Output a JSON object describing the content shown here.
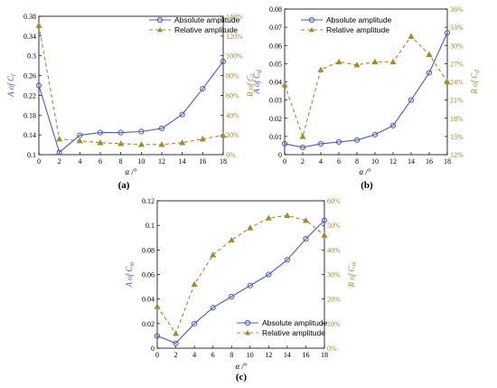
{
  "colors": {
    "absolute": "#4a5bc4",
    "relative": "#a68a2a",
    "axis": "#000000"
  },
  "chart_data": [
    {
      "type": "line",
      "panel_label": "(a)",
      "x": [
        0,
        2,
        4,
        6,
        8,
        10,
        12,
        14,
        16,
        18
      ],
      "xlabel": "α /°",
      "ylabel_left": "A of C_l",
      "ylabel_right": "R of C_l",
      "xlim": [
        0,
        18
      ],
      "ylim_left": [
        0.1,
        0.4
      ],
      "ylim_right": [
        0,
        150
      ],
      "xticks": [
        "0",
        "2",
        "4",
        "6",
        "8",
        "10",
        "12",
        "14",
        "16",
        "18"
      ],
      "yticks_left": [
        "0.1",
        "0.14",
        "0.18",
        "0.22",
        "0.26",
        "0.3",
        "0.34",
        "0.38"
      ],
      "yticks_right": [
        "0%",
        "20%",
        "40%",
        "60%",
        "80%",
        "100%",
        "120%",
        "140%"
      ],
      "legend_position": "top-right",
      "series": [
        {
          "name": "Absolute amplitude",
          "axis": "left",
          "values": [
            0.25,
            0.105,
            0.142,
            0.148,
            0.148,
            0.15,
            0.157,
            0.187,
            0.243,
            0.302
          ]
        },
        {
          "name": "Relative amplitude",
          "axis": "right",
          "values": [
            140,
            17,
            15,
            13,
            12,
            11,
            11,
            13,
            17,
            21
          ]
        }
      ]
    },
    {
      "type": "line",
      "panel_label": "(b)",
      "x": [
        0,
        2,
        4,
        6,
        8,
        10,
        12,
        14,
        16,
        18
      ],
      "xlabel": "α /°",
      "ylabel_left": "A of C_d",
      "ylabel_right": "R of C_d",
      "xlim": [
        0,
        18
      ],
      "ylim_left": [
        0,
        0.08
      ],
      "ylim_right": [
        12,
        36
      ],
      "xticks": [
        "0",
        "2",
        "4",
        "6",
        "8",
        "10",
        "12",
        "14",
        "16",
        "18"
      ],
      "yticks_left": [
        "0",
        "0.01",
        "0.02",
        "0.03",
        "0.04",
        "0.05",
        "0.06",
        "0.07",
        "0.08"
      ],
      "yticks_right": [
        "12%",
        "15%",
        "18%",
        "21%",
        "24%",
        "27%",
        "30%",
        "33%",
        "36%"
      ],
      "legend_position": "top-left",
      "series": [
        {
          "name": "Absolute amplitude",
          "axis": "left",
          "values": [
            0.006,
            0.004,
            0.006,
            0.007,
            0.008,
            0.011,
            0.016,
            0.03,
            0.045,
            0.067
          ]
        },
        {
          "name": "Relative amplitude",
          "axis": "right",
          "values": [
            23.5,
            15,
            26,
            27.3,
            26.8,
            27.3,
            27.3,
            31.5,
            28.5,
            24
          ]
        }
      ]
    },
    {
      "type": "line",
      "panel_label": "(c)",
      "x": [
        0,
        2,
        4,
        6,
        8,
        10,
        12,
        14,
        16,
        18
      ],
      "xlabel": "α /°",
      "ylabel_left": "A of C_m",
      "ylabel_right": "R of C_m",
      "xlim": [
        0,
        18
      ],
      "ylim_left": [
        0,
        0.12
      ],
      "ylim_right": [
        0,
        60
      ],
      "xticks": [
        "0",
        "2",
        "4",
        "6",
        "8",
        "10",
        "12",
        "14",
        "16",
        "18"
      ],
      "yticks_left": [
        "0",
        "0.02",
        "0.04",
        "0.06",
        "0.08",
        "0.1",
        "0.12"
      ],
      "yticks_right": [
        "0%",
        "10%",
        "20%",
        "30%",
        "40%",
        "50%",
        "60%"
      ],
      "legend_position": "bottom-right",
      "series": [
        {
          "name": "Absolute amplitude",
          "axis": "left",
          "values": [
            0.01,
            0.004,
            0.02,
            0.033,
            0.042,
            0.051,
            0.06,
            0.072,
            0.089,
            0.104
          ]
        },
        {
          "name": "Relative amplitude",
          "axis": "right",
          "values": [
            17,
            6,
            26,
            38,
            44,
            49,
            53,
            54,
            52,
            46
          ]
        }
      ]
    }
  ]
}
